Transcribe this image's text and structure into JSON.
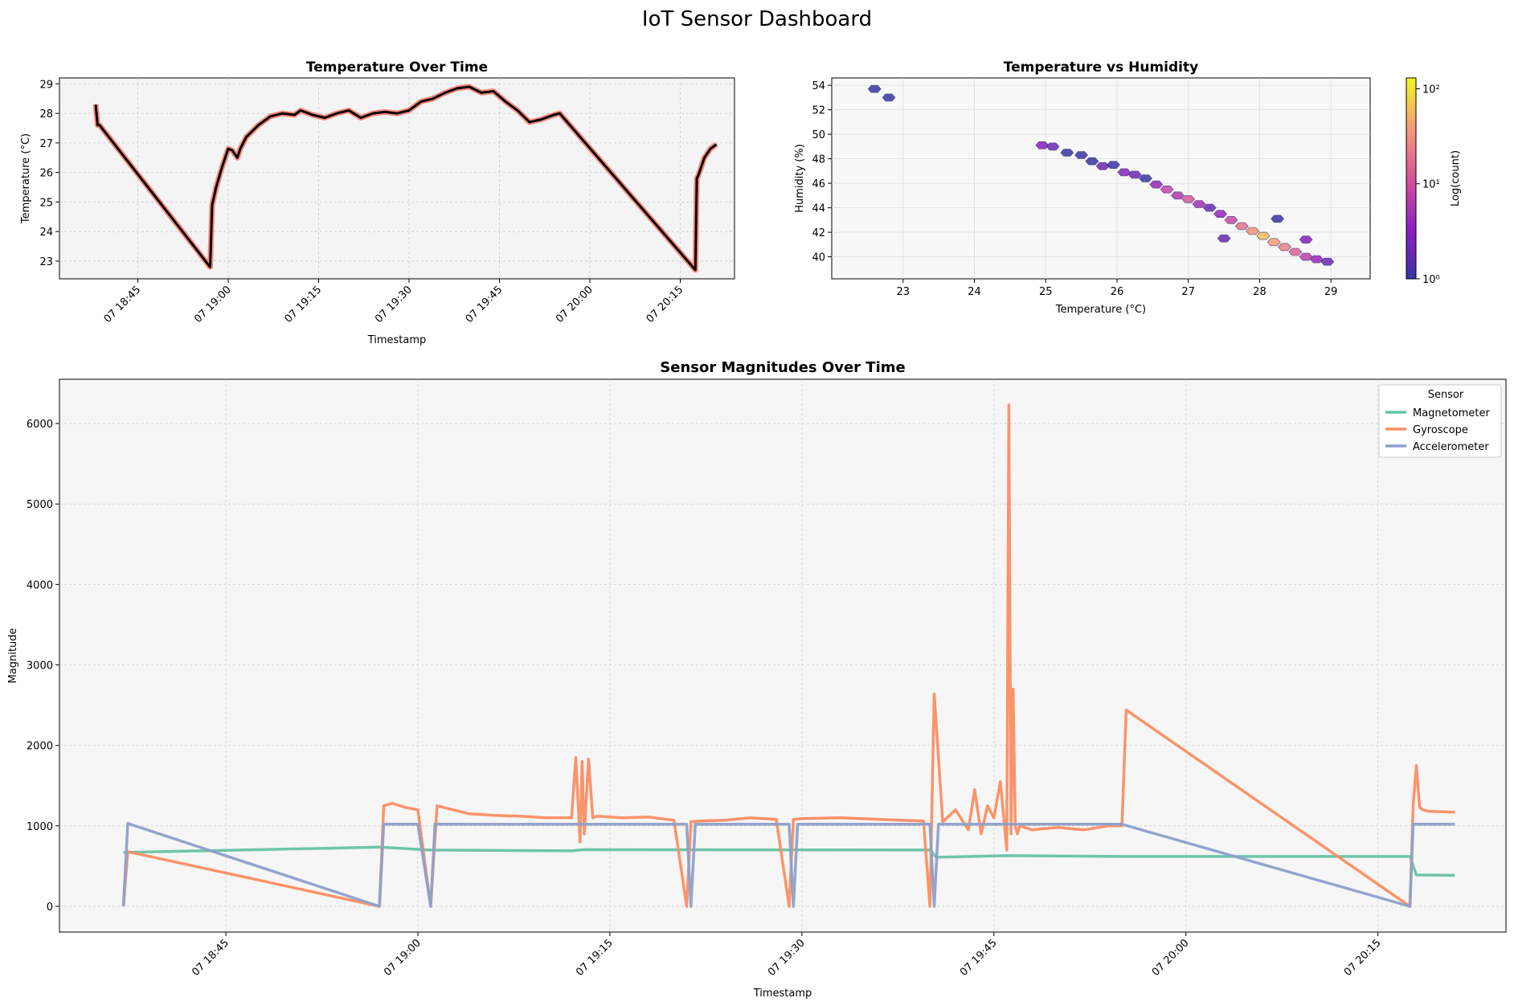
{
  "suptitle": "IoT Sensor Dashboard",
  "chart_data": [
    {
      "type": "line",
      "title": "Temperature Over Time",
      "xlabel": "Timestamp",
      "ylabel": "Temperature (°C)",
      "xlim": [
        "18:32",
        "20:24"
      ],
      "ylim": [
        22.4,
        29.2
      ],
      "x_ticks": [
        "07 18:45",
        "07 19:00",
        "07 19:15",
        "07 19:30",
        "07 19:45",
        "07 20:00",
        "07 20:15"
      ],
      "y_ticks": [
        23,
        24,
        25,
        26,
        27,
        28,
        29
      ],
      "grid": true,
      "colors": {
        "line": "#000000",
        "under": "#fa8072",
        "background": "#f4f4f4"
      },
      "series": [
        {
          "x": [
            "18:38:00",
            "18:38:20",
            "18:38:40",
            "18:57:00",
            "18:57:20",
            "18:58:00",
            "18:59:00",
            "19:00:00",
            "19:00:40",
            "19:01:30",
            "19:02:00",
            "19:03:00",
            "19:04:00",
            "19:05:00",
            "19:07:00",
            "19:09:00",
            "19:11:00",
            "19:12:00",
            "19:14:00",
            "19:16:00",
            "19:18:00",
            "19:20:00",
            "19:22:00",
            "19:24:00",
            "19:26:00",
            "19:28:00",
            "19:30:00",
            "19:32:00",
            "19:34:00",
            "19:36:00",
            "19:38:00",
            "19:40:00",
            "19:42:00",
            "19:44:00",
            "19:46:00",
            "19:48:00",
            "19:50:00",
            "19:52:00",
            "19:54:00",
            "19:55:00",
            "20:17:30",
            "20:17:45",
            "20:18:00",
            "20:19:00",
            "20:20:00",
            "20:21:00"
          ],
          "y": [
            28.3,
            27.6,
            27.6,
            22.8,
            24.9,
            25.5,
            26.2,
            26.8,
            26.75,
            26.5,
            26.8,
            27.2,
            27.4,
            27.6,
            27.9,
            28.0,
            27.95,
            28.1,
            27.95,
            27.85,
            28.0,
            28.1,
            27.85,
            28.0,
            28.05,
            28.0,
            28.1,
            28.4,
            28.5,
            28.7,
            28.85,
            28.9,
            28.7,
            28.75,
            28.4,
            28.1,
            27.7,
            27.8,
            27.95,
            28.0,
            22.7,
            25.8,
            25.9,
            26.5,
            26.8,
            26.95
          ]
        }
      ]
    },
    {
      "type": "scatter",
      "title": "Temperature vs Humidity",
      "xlabel": "Temperature (°C)",
      "ylabel": "Humidity (%)",
      "xlim": [
        22.0,
        29.55
      ],
      "ylim": [
        38.2,
        54.6
      ],
      "x_ticks": [
        23,
        24,
        25,
        26,
        27,
        28,
        29
      ],
      "y_ticks": [
        40,
        42,
        44,
        46,
        48,
        50,
        52,
        54
      ],
      "grid": true,
      "colorbar": {
        "label": "Log(count)",
        "scale": "log",
        "ticks": [
          "10⁰",
          "10¹",
          "10²"
        ],
        "colormap": "plasma",
        "max": 130
      },
      "hexbins": [
        {
          "x": 22.6,
          "y": 53.7,
          "count": 1
        },
        {
          "x": 22.8,
          "y": 53.0,
          "count": 1
        },
        {
          "x": 24.95,
          "y": 49.1,
          "count": 3
        },
        {
          "x": 25.1,
          "y": 49.0,
          "count": 2
        },
        {
          "x": 25.3,
          "y": 48.5,
          "count": 1
        },
        {
          "x": 25.5,
          "y": 48.3,
          "count": 1
        },
        {
          "x": 25.65,
          "y": 47.8,
          "count": 1
        },
        {
          "x": 25.8,
          "y": 47.4,
          "count": 2
        },
        {
          "x": 25.95,
          "y": 47.5,
          "count": 1
        },
        {
          "x": 26.1,
          "y": 46.9,
          "count": 3
        },
        {
          "x": 26.25,
          "y": 46.7,
          "count": 2
        },
        {
          "x": 26.4,
          "y": 46.4,
          "count": 1
        },
        {
          "x": 26.55,
          "y": 45.9,
          "count": 4
        },
        {
          "x": 26.7,
          "y": 45.5,
          "count": 8
        },
        {
          "x": 26.85,
          "y": 45.0,
          "count": 6
        },
        {
          "x": 27.0,
          "y": 44.7,
          "count": 12
        },
        {
          "x": 27.15,
          "y": 44.3,
          "count": 5
        },
        {
          "x": 27.3,
          "y": 44.0,
          "count": 2
        },
        {
          "x": 27.45,
          "y": 43.5,
          "count": 4
        },
        {
          "x": 27.6,
          "y": 43.0,
          "count": 9
        },
        {
          "x": 27.75,
          "y": 42.5,
          "count": 20
        },
        {
          "x": 27.9,
          "y": 42.1,
          "count": 35
        },
        {
          "x": 28.05,
          "y": 41.7,
          "count": 60
        },
        {
          "x": 28.2,
          "y": 41.2,
          "count": 40
        },
        {
          "x": 28.35,
          "y": 40.8,
          "count": 25
        },
        {
          "x": 28.5,
          "y": 40.4,
          "count": 15
        },
        {
          "x": 28.65,
          "y": 40.0,
          "count": 8
        },
        {
          "x": 28.8,
          "y": 39.8,
          "count": 4
        },
        {
          "x": 28.95,
          "y": 39.6,
          "count": 2
        },
        {
          "x": 28.25,
          "y": 43.1,
          "count": 1
        },
        {
          "x": 28.65,
          "y": 41.4,
          "count": 3
        },
        {
          "x": 27.5,
          "y": 41.5,
          "count": 2
        }
      ]
    },
    {
      "type": "line",
      "title": "Sensor Magnitudes Over Time",
      "xlabel": "Timestamp",
      "ylabel": "Magnitude",
      "xlim": [
        "18:32",
        "20:25"
      ],
      "ylim": [
        -320,
        6550
      ],
      "x_ticks": [
        "07 18:45",
        "07 19:00",
        "07 19:15",
        "07 19:30",
        "07 19:45",
        "07 20:00",
        "07 20:15"
      ],
      "y_ticks": [
        0,
        1000,
        2000,
        3000,
        4000,
        5000,
        6000
      ],
      "grid": true,
      "legend": {
        "title": "Sensor",
        "position": "top-right"
      },
      "series": [
        {
          "name": "Magnetometer",
          "color": "#66c2a5",
          "x": [
            "18:37:00",
            "18:57:00",
            "19:01:00",
            "19:12:00",
            "19:13:00",
            "19:40:00",
            "19:40:30",
            "19:46:00",
            "19:55:00",
            "20:17:30",
            "20:18:00",
            "20:21:00"
          ],
          "y": [
            670,
            735,
            700,
            690,
            705,
            700,
            610,
            630,
            620,
            620,
            390,
            385
          ]
        },
        {
          "name": "Gyroscope",
          "color": "#fc8d62",
          "x": [
            "18:37:00",
            "18:37:20",
            "18:57:00",
            "18:57:20",
            "18:58:00",
            "18:59:00",
            "19:00:00",
            "19:01:00",
            "19:01:30",
            "19:02:00",
            "19:04:00",
            "19:06:00",
            "19:08:00",
            "19:10:00",
            "19:12:00",
            "19:12:20",
            "19:12:40",
            "19:12:50",
            "19:13:00",
            "19:13:20",
            "19:13:40",
            "19:14:00",
            "19:16:00",
            "19:18:00",
            "19:20:00",
            "19:21:00",
            "19:21:20",
            "19:22:00",
            "19:24:00",
            "19:26:00",
            "19:28:00",
            "19:29:00",
            "19:29:20",
            "19:30:00",
            "19:33:00",
            "19:36:00",
            "19:39:30",
            "19:40:00",
            "19:40:20",
            "19:41:00",
            "19:42:00",
            "19:43:00",
            "19:43:30",
            "19:44:00",
            "19:44:30",
            "19:45:00",
            "19:45:30",
            "19:46:00",
            "19:46:10",
            "19:46:20",
            "19:46:30",
            "19:46:40",
            "19:46:50",
            "19:47:00",
            "19:48:00",
            "19:50:00",
            "19:52:00",
            "19:54:00",
            "19:55:00",
            "19:55:20",
            "20:17:30",
            "20:17:45",
            "20:18:00",
            "20:18:15",
            "20:18:30",
            "20:19:00",
            "20:21:00"
          ],
          "y": [
            0,
            680,
            0,
            1250,
            1280,
            1230,
            1200,
            0,
            1250,
            1230,
            1150,
            1130,
            1120,
            1100,
            1100,
            1850,
            800,
            1800,
            900,
            1830,
            1100,
            1120,
            1100,
            1110,
            1070,
            0,
            1050,
            1060,
            1070,
            1100,
            1080,
            0,
            1080,
            1090,
            1100,
            1080,
            1060,
            0,
            2640,
            1050,
            1200,
            950,
            1450,
            900,
            1250,
            1100,
            1550,
            700,
            6230,
            900,
            2700,
            1000,
            900,
            1000,
            950,
            980,
            950,
            1000,
            1000,
            2440,
            0,
            1250,
            1750,
            1230,
            1200,
            1180,
            1170
          ]
        },
        {
          "name": "Accelerometer",
          "color": "#8da0cb",
          "x": [
            "18:37:00",
            "18:37:20",
            "18:57:00",
            "18:57:20",
            "19:00:00",
            "19:01:00",
            "19:01:20",
            "19:21:00",
            "19:21:20",
            "19:21:40",
            "19:29:00",
            "19:29:20",
            "19:29:40",
            "19:40:00",
            "19:40:20",
            "19:40:40",
            "19:55:00",
            "20:17:30",
            "20:17:45",
            "20:21:00"
          ],
          "y": [
            0,
            1030,
            0,
            1020,
            1020,
            0,
            1020,
            1020,
            0,
            1020,
            1020,
            0,
            1020,
            1020,
            0,
            1020,
            1020,
            0,
            1020,
            1020
          ]
        }
      ]
    }
  ]
}
